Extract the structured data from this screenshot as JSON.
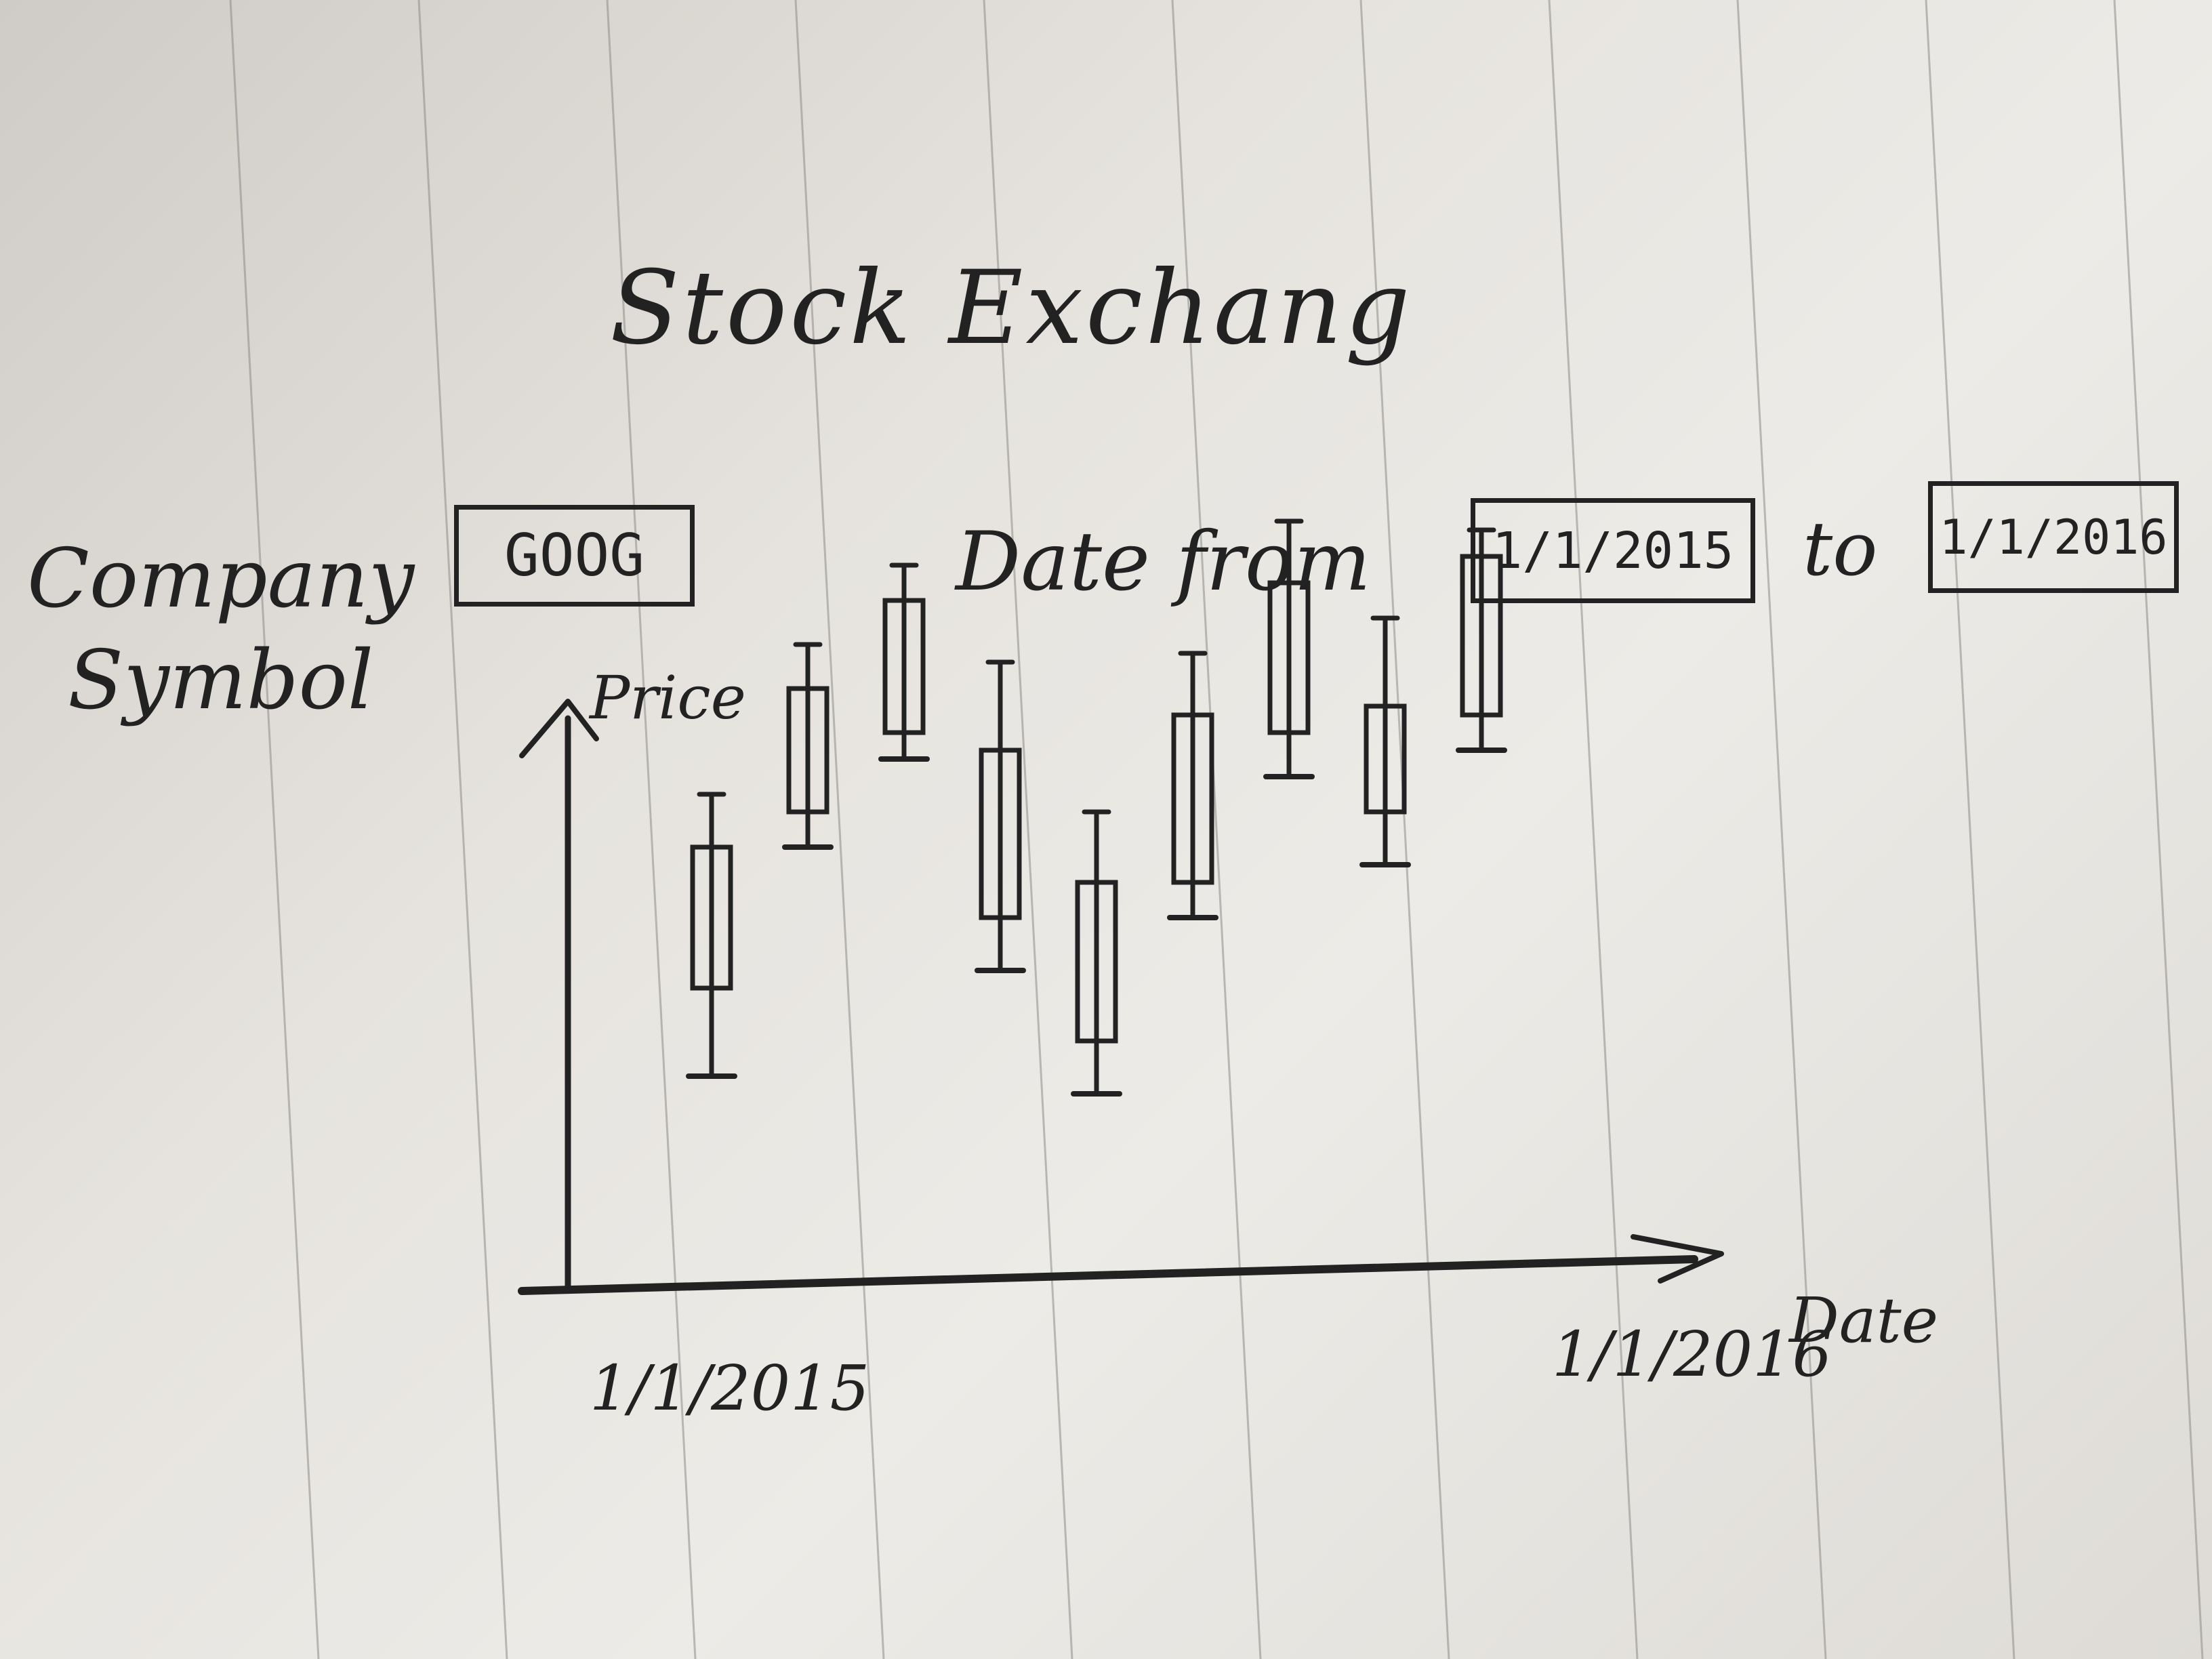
{
  "title": "Stock Exchang",
  "form": {
    "company_label_line1": "Company",
    "company_label_line2": "Symbol",
    "symbol_value": "GOOG",
    "date_from_label": "Date from",
    "date_from_value": "1/1/2015",
    "to_label": "to",
    "date_to_value": "1/1/2016"
  },
  "chart_data": {
    "type": "candlestick",
    "ylabel": "Price",
    "xlabel": "Date",
    "x_tick_labels": [
      "1/1/2015",
      "1/1/2016"
    ],
    "candles": [
      {
        "low": 2.4,
        "open": 3.4,
        "close": 5.0,
        "high": 5.6
      },
      {
        "low": 5.0,
        "open": 5.4,
        "close": 6.8,
        "high": 7.3
      },
      {
        "low": 6.0,
        "open": 6.3,
        "close": 7.8,
        "high": 8.2
      },
      {
        "low": 3.6,
        "open": 4.2,
        "close": 6.1,
        "high": 7.1
      },
      {
        "low": 2.2,
        "open": 2.8,
        "close": 4.6,
        "high": 5.4
      },
      {
        "low": 4.2,
        "open": 4.6,
        "close": 6.5,
        "high": 7.2
      },
      {
        "low": 5.8,
        "open": 6.3,
        "close": 8.0,
        "high": 8.7
      },
      {
        "low": 4.8,
        "open": 5.4,
        "close": 6.6,
        "high": 7.6
      },
      {
        "low": 6.1,
        "open": 6.5,
        "close": 8.3,
        "high": 8.6
      }
    ],
    "ylim": [
      0,
      10
    ],
    "grid": false,
    "legend": false
  }
}
